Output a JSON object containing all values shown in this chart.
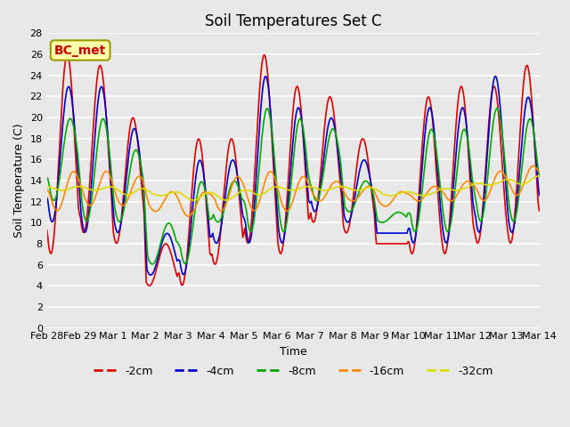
{
  "title": "Soil Temperatures Set C",
  "xlabel": "Time",
  "ylabel": "Soil Temperature (C)",
  "ylim": [
    0,
    28
  ],
  "yticks": [
    0,
    2,
    4,
    6,
    8,
    10,
    12,
    14,
    16,
    18,
    20,
    22,
    24,
    26,
    28
  ],
  "xtick_labels": [
    "Feb 28",
    "Feb 29",
    "Mar 1",
    "Mar 2",
    "Mar 3",
    "Mar 4",
    "Mar 5",
    "Mar 6",
    "Mar 7",
    "Mar 8",
    "Mar 9",
    "Mar 10",
    "Mar 11",
    "Mar 12",
    "Mar 13",
    "Mar 14"
  ],
  "colors": {
    "-2cm": "#dd0000",
    "-4cm": "#0000cc",
    "-8cm": "#00aa00",
    "-16cm": "#ff8800",
    "-32cm": "#dddd00"
  },
  "annotation_text": "BC_met",
  "annotation_color": "#cc0000",
  "annotation_bg": "#ffffaa",
  "plot_bg": "#e8e8e8",
  "grid_color": "#ffffff",
  "title_fontsize": 12,
  "label_fontsize": 9,
  "tick_fontsize": 8
}
